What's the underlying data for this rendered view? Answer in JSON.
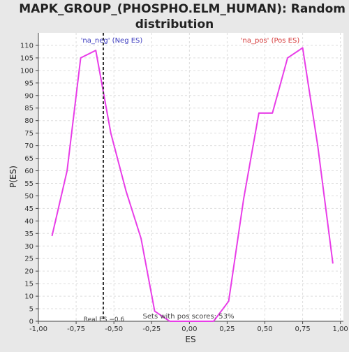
{
  "chart_data": {
    "type": "line",
    "title": "MAPK_GROUP_(PHOSPHO.ELM_HUMAN): Random ES distribution",
    "title_lines": [
      "MAPK_GROUP_(PHOSPHO.ELM_HUMAN): Random ES",
      "distribution"
    ],
    "xlabel": "ES",
    "ylabel": "P(ES)",
    "xlim": [
      -1.0,
      1.02
    ],
    "ylim": [
      0,
      115
    ],
    "grid": true,
    "x_ticks": [
      -1.0,
      -0.75,
      -0.5,
      -0.25,
      0.0,
      0.25,
      0.5,
      0.75,
      1.0
    ],
    "x_tick_labels": [
      "-1,00",
      "-0,75",
      "-0,50",
      "-0,25",
      "0,00",
      "0,25",
      "0,50",
      "0,75",
      "1,00"
    ],
    "y_ticks": [
      0,
      5,
      10,
      15,
      20,
      25,
      30,
      35,
      40,
      45,
      50,
      55,
      60,
      65,
      70,
      75,
      80,
      85,
      90,
      95,
      100,
      105,
      110
    ],
    "series": [
      {
        "color": "#e83de8",
        "x": [
          -0.91,
          -0.81,
          -0.72,
          -0.62,
          -0.52,
          -0.42,
          -0.32,
          -0.23,
          -0.13,
          -0.03,
          0.07,
          0.16,
          0.26,
          0.36,
          0.46,
          0.55,
          0.65,
          0.75,
          0.85,
          0.95
        ],
        "y": [
          34,
          60,
          105,
          108,
          75,
          52,
          33,
          4,
          0,
          0,
          0,
          0,
          8,
          49,
          83,
          83,
          105,
          109,
          70,
          23
        ]
      }
    ],
    "real_es": -0.57,
    "real_es_label": "Real ES −0.6",
    "neg_label": "'na_neg' (Neg ES)",
    "pos_label": "'na_pos' (Pos ES)",
    "pos_scores_label": "Sets with pos scores: 53%",
    "colors": {
      "background": "#e8e8e8",
      "plot_bg": "#ffffff",
      "grid": "#dddddd",
      "line": "#e83de8",
      "neg_label": "#3b3bbf",
      "pos_label": "#d63b3b",
      "real_es_line": "#333333"
    }
  }
}
